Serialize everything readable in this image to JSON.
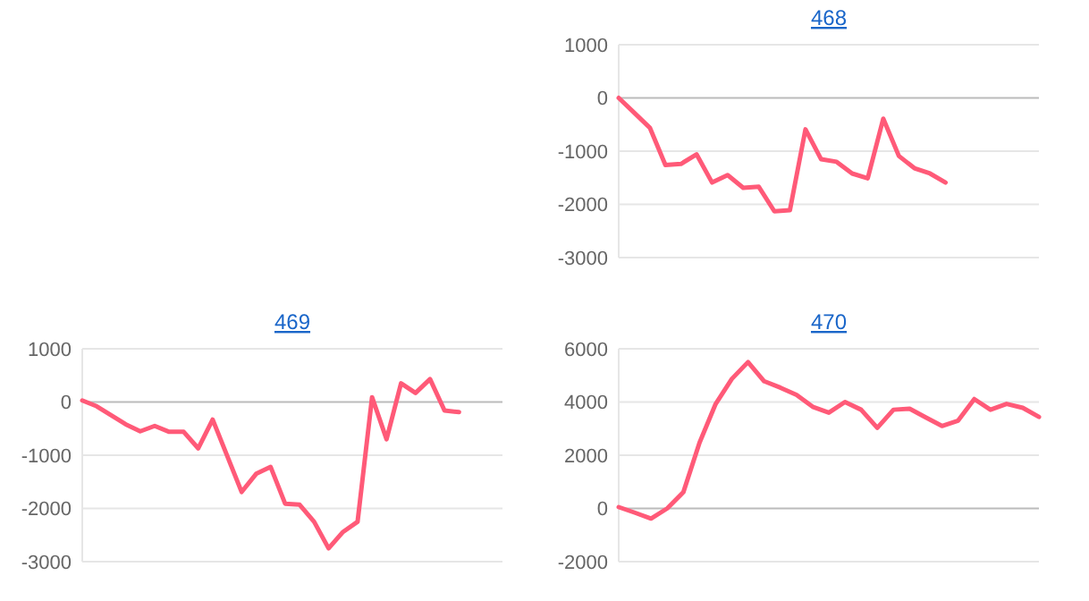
{
  "chart_data": [
    {
      "type": "line",
      "title": "468",
      "categories": [
        null,
        null,
        null,
        null,
        null,
        null,
        null,
        null,
        null,
        null,
        null,
        null,
        null,
        null,
        null,
        null,
        null,
        null,
        null,
        null,
        null,
        null,
        null,
        null,
        null,
        null,
        null,
        null
      ],
      "series": [
        {
          "color": "#ff5a78",
          "values": [
            0,
            -280,
            -560,
            -1260,
            -1240,
            -1060,
            -1590,
            -1450,
            -1690,
            -1670,
            -2130,
            -2110,
            -590,
            -1150,
            -1200,
            -1420,
            -1510,
            -390,
            -1090,
            -1320,
            -1420,
            -1590,
            null,
            null,
            null,
            null,
            null,
            null
          ]
        }
      ],
      "ylim": [
        -3000,
        1000
      ],
      "yticks": [
        -3000,
        -2000,
        -1000,
        0,
        1000
      ],
      "grid": "y",
      "tick_labels": "y"
    },
    {
      "type": "line",
      "title": "469",
      "categories": [
        null,
        null,
        null,
        null,
        null,
        null,
        null,
        null,
        null,
        null,
        null,
        null,
        null,
        null,
        null,
        null,
        null,
        null,
        null,
        null,
        null,
        null,
        null,
        null,
        null,
        null,
        null,
        null,
        null,
        null
      ],
      "series": [
        {
          "color": "#ff5a78",
          "values": [
            30,
            -80,
            -250,
            -420,
            -550,
            -450,
            -560,
            -560,
            -870,
            -330,
            -1010,
            -1690,
            -1350,
            -1220,
            -1910,
            -1930,
            -2250,
            -2750,
            -2440,
            -2250,
            90,
            -700,
            350,
            170,
            430,
            -160,
            -190,
            null,
            null,
            null
          ]
        }
      ],
      "ylim": [
        -3000,
        1000
      ],
      "yticks": [
        -3000,
        -2000,
        -1000,
        0,
        1000
      ],
      "grid": "y",
      "tick_labels": "y"
    },
    {
      "type": "line",
      "title": "470",
      "categories": [
        null,
        null,
        null,
        null,
        null,
        null,
        null,
        null,
        null,
        null,
        null,
        null,
        null,
        null,
        null,
        null,
        null,
        null,
        null,
        null,
        null,
        null,
        null,
        null,
        null,
        null,
        null
      ],
      "series": [
        {
          "color": "#ff5a78",
          "values": [
            50,
            -160,
            -380,
            0,
            610,
            2470,
            3930,
            4870,
            5500,
            4780,
            4540,
            4270,
            3820,
            3600,
            4000,
            3710,
            3030,
            3710,
            3750,
            3420,
            3100,
            3300,
            4110,
            3710,
            3930,
            3780,
            3440
          ]
        }
      ],
      "ylim": [
        -2000,
        6000
      ],
      "yticks": [
        -2000,
        0,
        2000,
        4000,
        6000
      ],
      "grid": "y",
      "tick_labels": "y"
    }
  ]
}
